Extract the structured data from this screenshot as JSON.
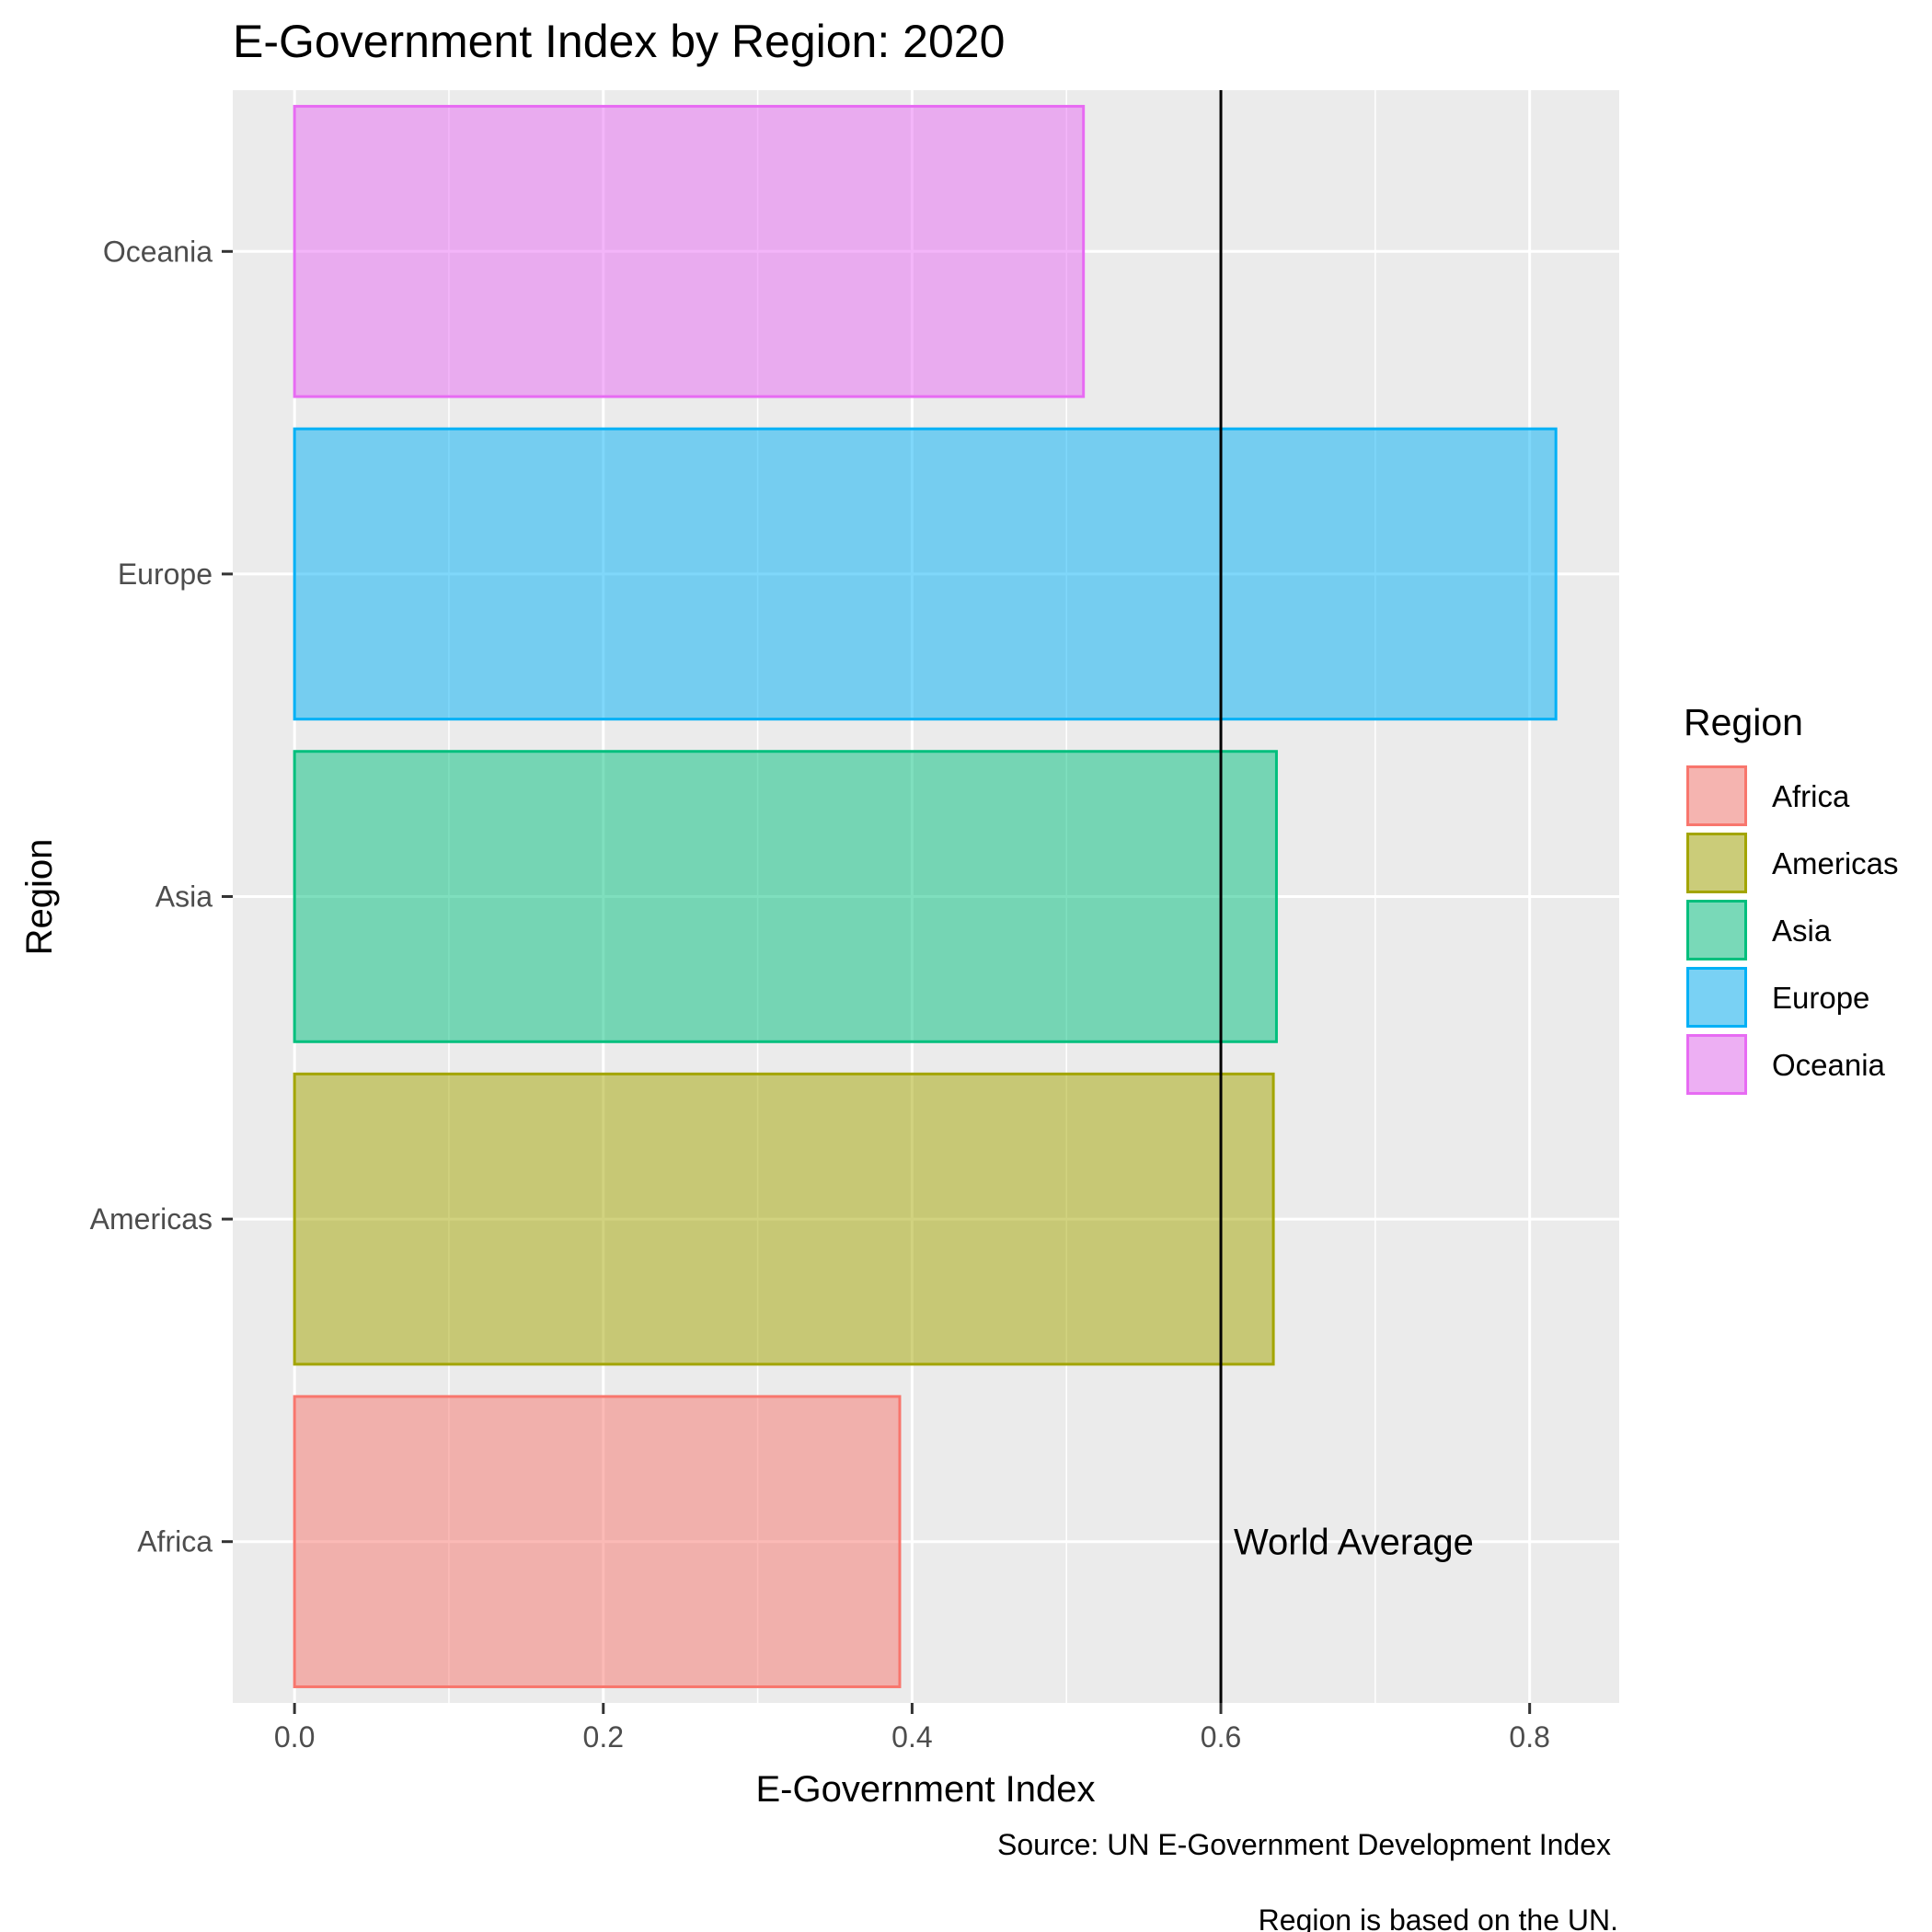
{
  "chart_data": {
    "type": "bar",
    "orientation": "horizontal",
    "title": "E-Government Index by Region: 2020",
    "xlabel": "E-Government Index",
    "ylabel": "Region",
    "categories": [
      "Africa",
      "Americas",
      "Asia",
      "Europe",
      "Oceania"
    ],
    "values": [
      0.392,
      0.634,
      0.636,
      0.817,
      0.511
    ],
    "colors": [
      "#F8766D",
      "#A3A500",
      "#00BF7D",
      "#00B0F6",
      "#E76BF3"
    ],
    "xlim": [
      -0.04,
      0.858
    ],
    "xticks": [
      0.0,
      0.2,
      0.4,
      0.6,
      0.8
    ],
    "xtick_labels": [
      "0.0",
      "0.2",
      "0.4",
      "0.6",
      "0.8"
    ],
    "reference_line": {
      "x": 0.6,
      "label": "World Average"
    },
    "grid": true,
    "legend": {
      "title": "Region",
      "position": "right",
      "items": [
        "Africa",
        "Americas",
        "Asia",
        "Europe",
        "Oceania"
      ]
    },
    "caption": [
      "Source: UN E-Government Development Index",
      "Region is based on the UN."
    ]
  }
}
